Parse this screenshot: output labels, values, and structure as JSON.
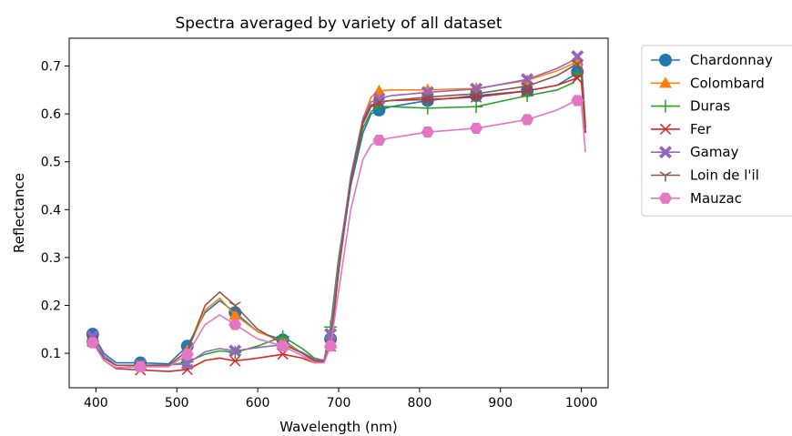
{
  "chart_data": {
    "type": "line",
    "title": "Spectra averaged by variety of all dataset",
    "xlabel": "Wavelength (nm)",
    "ylabel": "Reflectance",
    "xlim": [
      367,
      1033
    ],
    "ylim": [
      0.028,
      0.758
    ],
    "xticks": [
      400,
      500,
      600,
      700,
      800,
      900,
      1000
    ],
    "yticks": [
      0.1,
      0.2,
      0.3,
      0.4,
      0.5,
      0.6,
      0.7
    ],
    "grid": false,
    "legend_position": "outside-right",
    "marker_x": [
      396,
      455,
      513,
      572,
      631,
      690,
      750,
      810,
      870,
      933,
      995
    ],
    "series": [
      {
        "name": "Chardonnay",
        "color": "#1f77b4",
        "marker": "circle",
        "points": [
          [
            396,
            0.14
          ],
          [
            410,
            0.1
          ],
          [
            425,
            0.08
          ],
          [
            455,
            0.08
          ],
          [
            490,
            0.078
          ],
          [
            513,
            0.115
          ],
          [
            535,
            0.185
          ],
          [
            553,
            0.21
          ],
          [
            572,
            0.185
          ],
          [
            600,
            0.145
          ],
          [
            631,
            0.128
          ],
          [
            655,
            0.1
          ],
          [
            670,
            0.085
          ],
          [
            682,
            0.085
          ],
          [
            690,
            0.13
          ],
          [
            700,
            0.28
          ],
          [
            715,
            0.45
          ],
          [
            730,
            0.56
          ],
          [
            740,
            0.6
          ],
          [
            750,
            0.608
          ],
          [
            765,
            0.615
          ],
          [
            810,
            0.628
          ],
          [
            870,
            0.638
          ],
          [
            933,
            0.648
          ],
          [
            970,
            0.66
          ],
          [
            990,
            0.68
          ],
          [
            995,
            0.688
          ],
          [
            1000,
            0.68
          ],
          [
            1005,
            0.57
          ]
        ]
      },
      {
        "name": "Colombard",
        "color": "#ff7f0e",
        "marker": "triangle",
        "points": [
          [
            396,
            0.125
          ],
          [
            410,
            0.09
          ],
          [
            425,
            0.075
          ],
          [
            455,
            0.075
          ],
          [
            490,
            0.074
          ],
          [
            513,
            0.105
          ],
          [
            535,
            0.19
          ],
          [
            553,
            0.215
          ],
          [
            572,
            0.18
          ],
          [
            600,
            0.145
          ],
          [
            631,
            0.125
          ],
          [
            655,
            0.1
          ],
          [
            670,
            0.082
          ],
          [
            682,
            0.082
          ],
          [
            690,
            0.12
          ],
          [
            700,
            0.28
          ],
          [
            715,
            0.47
          ],
          [
            730,
            0.59
          ],
          [
            740,
            0.635
          ],
          [
            750,
            0.648
          ],
          [
            765,
            0.65
          ],
          [
            810,
            0.65
          ],
          [
            870,
            0.653
          ],
          [
            933,
            0.67
          ],
          [
            970,
            0.69
          ],
          [
            990,
            0.705
          ],
          [
            995,
            0.712
          ],
          [
            1000,
            0.705
          ],
          [
            1005,
            0.58
          ]
        ]
      },
      {
        "name": "Duras",
        "color": "#2ca02c",
        "marker": "plus",
        "points": [
          [
            396,
            0.125
          ],
          [
            410,
            0.09
          ],
          [
            425,
            0.075
          ],
          [
            455,
            0.075
          ],
          [
            490,
            0.075
          ],
          [
            513,
            0.082
          ],
          [
            535,
            0.098
          ],
          [
            553,
            0.105
          ],
          [
            572,
            0.102
          ],
          [
            600,
            0.115
          ],
          [
            631,
            0.135
          ],
          [
            655,
            0.11
          ],
          [
            670,
            0.09
          ],
          [
            682,
            0.085
          ],
          [
            690,
            0.155
          ],
          [
            700,
            0.3
          ],
          [
            715,
            0.46
          ],
          [
            730,
            0.57
          ],
          [
            740,
            0.605
          ],
          [
            750,
            0.615
          ],
          [
            765,
            0.615
          ],
          [
            810,
            0.612
          ],
          [
            870,
            0.615
          ],
          [
            933,
            0.638
          ],
          [
            970,
            0.65
          ],
          [
            990,
            0.665
          ],
          [
            995,
            0.685
          ],
          [
            1000,
            0.68
          ],
          [
            1005,
            0.56
          ]
        ]
      },
      {
        "name": "Fer",
        "color": "#d62728",
        "marker": "x",
        "points": [
          [
            396,
            0.125
          ],
          [
            410,
            0.085
          ],
          [
            425,
            0.068
          ],
          [
            455,
            0.065
          ],
          [
            490,
            0.062
          ],
          [
            513,
            0.066
          ],
          [
            535,
            0.085
          ],
          [
            553,
            0.09
          ],
          [
            572,
            0.084
          ],
          [
            600,
            0.09
          ],
          [
            631,
            0.098
          ],
          [
            655,
            0.09
          ],
          [
            670,
            0.08
          ],
          [
            682,
            0.082
          ],
          [
            690,
            0.115
          ],
          [
            700,
            0.27
          ],
          [
            715,
            0.46
          ],
          [
            730,
            0.58
          ],
          [
            740,
            0.615
          ],
          [
            750,
            0.625
          ],
          [
            765,
            0.628
          ],
          [
            810,
            0.63
          ],
          [
            870,
            0.635
          ],
          [
            933,
            0.648
          ],
          [
            970,
            0.66
          ],
          [
            990,
            0.672
          ],
          [
            995,
            0.675
          ],
          [
            1000,
            0.665
          ],
          [
            1005,
            0.56
          ]
        ]
      },
      {
        "name": "Gamay",
        "color": "#9467bd",
        "marker": "cross",
        "points": [
          [
            396,
            0.135
          ],
          [
            410,
            0.095
          ],
          [
            425,
            0.075
          ],
          [
            455,
            0.075
          ],
          [
            490,
            0.076
          ],
          [
            513,
            0.078
          ],
          [
            535,
            0.103
          ],
          [
            553,
            0.11
          ],
          [
            572,
            0.105
          ],
          [
            600,
            0.112
          ],
          [
            631,
            0.118
          ],
          [
            655,
            0.102
          ],
          [
            670,
            0.088
          ],
          [
            682,
            0.086
          ],
          [
            690,
            0.14
          ],
          [
            700,
            0.29
          ],
          [
            715,
            0.47
          ],
          [
            730,
            0.59
          ],
          [
            740,
            0.625
          ],
          [
            750,
            0.632
          ],
          [
            765,
            0.638
          ],
          [
            810,
            0.645
          ],
          [
            870,
            0.652
          ],
          [
            933,
            0.672
          ],
          [
            970,
            0.695
          ],
          [
            990,
            0.712
          ],
          [
            995,
            0.72
          ],
          [
            1000,
            0.71
          ],
          [
            1005,
            0.57
          ]
        ]
      },
      {
        "name": "Loin de l'il",
        "color": "#8c564b",
        "marker": "tri-down",
        "points": [
          [
            396,
            0.125
          ],
          [
            410,
            0.09
          ],
          [
            425,
            0.075
          ],
          [
            455,
            0.075
          ],
          [
            490,
            0.075
          ],
          [
            513,
            0.105
          ],
          [
            535,
            0.2
          ],
          [
            553,
            0.228
          ],
          [
            572,
            0.2
          ],
          [
            600,
            0.15
          ],
          [
            631,
            0.12
          ],
          [
            655,
            0.1
          ],
          [
            670,
            0.085
          ],
          [
            682,
            0.083
          ],
          [
            690,
            0.12
          ],
          [
            700,
            0.275
          ],
          [
            715,
            0.46
          ],
          [
            730,
            0.585
          ],
          [
            740,
            0.618
          ],
          [
            750,
            0.625
          ],
          [
            765,
            0.628
          ],
          [
            810,
            0.635
          ],
          [
            870,
            0.642
          ],
          [
            933,
            0.658
          ],
          [
            970,
            0.68
          ],
          [
            990,
            0.7
          ],
          [
            995,
            0.705
          ],
          [
            1000,
            0.695
          ],
          [
            1005,
            0.57
          ]
        ]
      },
      {
        "name": "Mauzac",
        "color": "#e377c2",
        "marker": "hexagon",
        "points": [
          [
            396,
            0.122
          ],
          [
            410,
            0.085
          ],
          [
            425,
            0.07
          ],
          [
            455,
            0.072
          ],
          [
            490,
            0.072
          ],
          [
            513,
            0.098
          ],
          [
            535,
            0.16
          ],
          [
            553,
            0.18
          ],
          [
            572,
            0.16
          ],
          [
            600,
            0.13
          ],
          [
            631,
            0.115
          ],
          [
            655,
            0.095
          ],
          [
            670,
            0.08
          ],
          [
            682,
            0.08
          ],
          [
            690,
            0.115
          ],
          [
            700,
            0.23
          ],
          [
            715,
            0.4
          ],
          [
            730,
            0.505
          ],
          [
            740,
            0.535
          ],
          [
            750,
            0.545
          ],
          [
            765,
            0.55
          ],
          [
            810,
            0.562
          ],
          [
            870,
            0.57
          ],
          [
            933,
            0.588
          ],
          [
            970,
            0.608
          ],
          [
            990,
            0.625
          ],
          [
            995,
            0.628
          ],
          [
            1000,
            0.62
          ],
          [
            1005,
            0.52
          ]
        ]
      }
    ]
  }
}
